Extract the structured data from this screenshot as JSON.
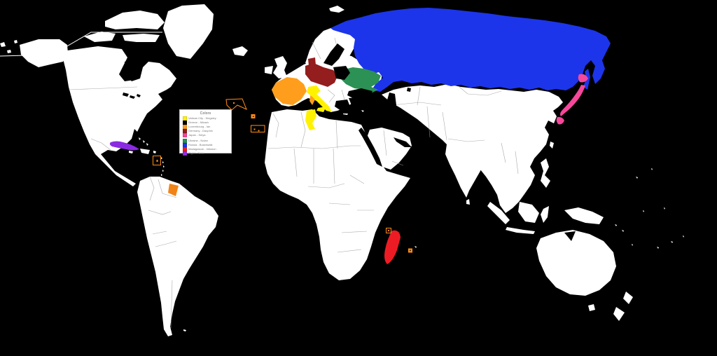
{
  "legend": {
    "title": "Colors",
    "items": [
      {
        "color": "#fff200",
        "label": "Vatican City - Kingsley"
      },
      {
        "color": "#000000",
        "label": "Greece - Nikash"
      },
      {
        "color": "#ff9e1c",
        "label": "Luxembourg - Ian"
      },
      {
        "color": "#941d1d",
        "label": "Germany - Dauphin"
      },
      {
        "color": "#f6479b",
        "label": "Japan - Seiya"
      },
      {
        "color": "#2b9155",
        "label": "Ukraine - Nolan"
      },
      {
        "color": "#1c35ea",
        "label": "Russia - Boardwalk"
      },
      {
        "color": "#ed1c24",
        "label": "Madagascar - Infusion"
      },
      {
        "color": "#9b2be2",
        "label": "Piglet - Kata"
      }
    ]
  },
  "map": {
    "colors": {
      "ocean": "#000000",
      "land": "#ffffff",
      "russia": "#1c35ea",
      "central_europe": "#941d1d",
      "denmark": "#941d1d",
      "ukraine": "#2b9155",
      "france": "#ff9e1c",
      "french_guiana": "#f08418",
      "corsica_sardinia": "#ff9e1c",
      "italy": "#fff200",
      "tunisia": "#fff200",
      "japan": "#f6479b",
      "cuba": "#8a2be2",
      "madagascar": "#ed1c24",
      "annotation": "#ff8c1a",
      "black_regions": "#000000"
    }
  }
}
